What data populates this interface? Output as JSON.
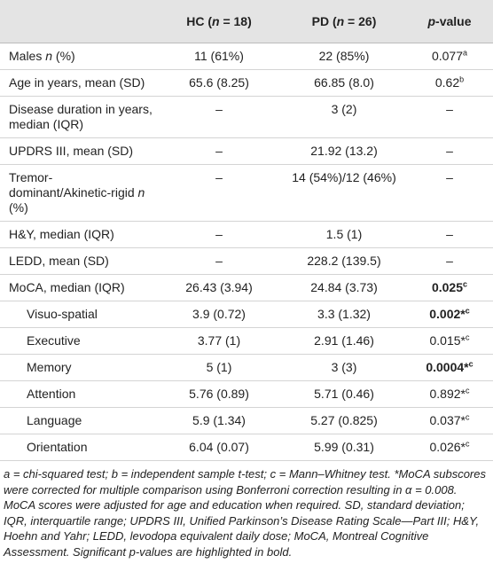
{
  "table": {
    "header": [
      [
        "HC (",
        "n",
        " = 18)"
      ],
      [
        "PD (",
        "n",
        " = 26)"
      ],
      [
        "",
        "p",
        "-value"
      ]
    ],
    "rows": [
      {
        "label": [
          "Males ",
          "n",
          " (%)"
        ],
        "hc": "11 (61%)",
        "pd": "22 (85%)",
        "p": "0.077",
        "sup": "a",
        "bold": false,
        "indent": false
      },
      {
        "label": [
          "Age in years, mean (SD)"
        ],
        "hc": "65.6 (8.25)",
        "pd": "66.85 (8.0)",
        "p": "0.62",
        "sup": "b",
        "bold": false,
        "indent": false
      },
      {
        "label": [
          "Disease duration in years, median (IQR)"
        ],
        "hc": "–",
        "pd": "3 (2)",
        "p": "–",
        "bold": false,
        "indent": false
      },
      {
        "label": [
          "UPDRS III, mean (SD)"
        ],
        "hc": "–",
        "pd": "21.92 (13.2)",
        "p": "–",
        "bold": false,
        "indent": false
      },
      {
        "label": [
          "Tremor-dominant/Akinetic-rigid ",
          "n",
          " (%)"
        ],
        "hc": "–",
        "pd": "14 (54%)/12 (46%)",
        "p": "–",
        "bold": false,
        "indent": false
      },
      {
        "label": [
          "H&Y, median (IQR)"
        ],
        "hc": "–",
        "pd": "1.5 (1)",
        "p": "–",
        "bold": false,
        "indent": false
      },
      {
        "label": [
          "LEDD, mean (SD)"
        ],
        "hc": "–",
        "pd": "228.2 (139.5)",
        "p": "–",
        "bold": false,
        "indent": false
      },
      {
        "label": [
          "MoCA, median (IQR)"
        ],
        "hc": "26.43 (3.94)",
        "pd": "24.84 (3.73)",
        "p": "0.025",
        "sup": "c",
        "bold": true,
        "indent": false
      },
      {
        "label": [
          "Visuo-spatial"
        ],
        "hc": "3.9 (0.72)",
        "pd": "3.3 (1.32)",
        "p": "0.002*",
        "sup": "c",
        "bold": true,
        "indent": true
      },
      {
        "label": [
          "Executive"
        ],
        "hc": "3.77 (1)",
        "pd": "2.91 (1.46)",
        "p": "0.015*",
        "sup": "c",
        "bold": false,
        "indent": true
      },
      {
        "label": [
          "Memory"
        ],
        "hc": "5 (1)",
        "pd": "3 (3)",
        "p": "0.0004*",
        "sup": "c",
        "bold": true,
        "indent": true
      },
      {
        "label": [
          "Attention"
        ],
        "hc": "5.76 (0.89)",
        "pd": "5.71 (0.46)",
        "p": "0.892*",
        "sup": "c",
        "bold": false,
        "indent": true
      },
      {
        "label": [
          "Language"
        ],
        "hc": "5.9 (1.34)",
        "pd": "5.27 (0.825)",
        "p": "0.037*",
        "sup": "c",
        "bold": false,
        "indent": true
      },
      {
        "label": [
          "Orientation"
        ],
        "hc": "6.04 (0.07)",
        "pd": "5.99 (0.31)",
        "p": "0.026*",
        "sup": "c",
        "bold": false,
        "indent": true
      }
    ],
    "footnote": "a = chi-squared test; b = independent sample t-test; c = Mann–Whitney test. *MoCA subscores were corrected for multiple comparison using Bonferroni correction resulting in α = 0.008. MoCA scores were adjusted for age and education when required. SD, standard deviation; IQR, interquartile range; UPDRS III, Unified Parkinson’s Disease Rating Scale—Part III; H&Y, Hoehn and Yahr; LEDD, levodopa equivalent daily dose; MoCA, Montreal Cognitive Assessment. Significant p-values are highlighted in bold."
  }
}
